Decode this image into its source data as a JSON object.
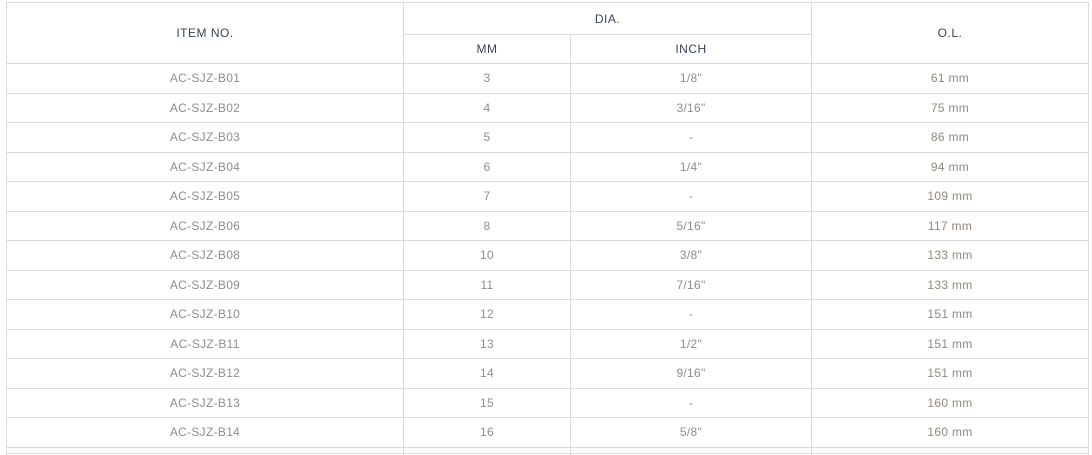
{
  "chart_data": {
    "type": "table",
    "header": {
      "item_no": "ITEM NO.",
      "dia": "DIA.",
      "dia_mm": "MM",
      "dia_inch": "INCH",
      "ol": "O.L."
    },
    "columns": [
      "ITEM NO.",
      "DIA. (MM)",
      "DIA. (INCH)",
      "O.L."
    ],
    "rows": [
      {
        "item_no": "AC-SJZ-B01",
        "dia_mm": "3",
        "dia_inch": "1/8\"",
        "ol": "61 mm"
      },
      {
        "item_no": "AC-SJZ-B02",
        "dia_mm": "4",
        "dia_inch": "3/16\"",
        "ol": "75 mm"
      },
      {
        "item_no": "AC-SJZ-B03",
        "dia_mm": "5",
        "dia_inch": "-",
        "ol": "86 mm"
      },
      {
        "item_no": "AC-SJZ-B04",
        "dia_mm": "6",
        "dia_inch": "1/4\"",
        "ol": "94 mm"
      },
      {
        "item_no": "AC-SJZ-B05",
        "dia_mm": "7",
        "dia_inch": "-",
        "ol": "109 mm"
      },
      {
        "item_no": "AC-SJZ-B06",
        "dia_mm": "8",
        "dia_inch": "5/16\"",
        "ol": "117 mm"
      },
      {
        "item_no": "AC-SJZ-B08",
        "dia_mm": "10",
        "dia_inch": "3/8\"",
        "ol": "133 mm"
      },
      {
        "item_no": "AC-SJZ-B09",
        "dia_mm": "11",
        "dia_inch": "7/16\"",
        "ol": "133 mm"
      },
      {
        "item_no": "AC-SJZ-B10",
        "dia_mm": "12",
        "dia_inch": "-",
        "ol": "151 mm"
      },
      {
        "item_no": "AC-SJZ-B11",
        "dia_mm": "13",
        "dia_inch": "1/2\"",
        "ol": "151 mm"
      },
      {
        "item_no": "AC-SJZ-B12",
        "dia_mm": "14",
        "dia_inch": "9/16\"",
        "ol": "151 mm"
      },
      {
        "item_no": "AC-SJZ-B13",
        "dia_mm": "15",
        "dia_inch": "-",
        "ol": "160 mm"
      },
      {
        "item_no": "AC-SJZ-B14",
        "dia_mm": "16",
        "dia_inch": "5/8\"",
        "ol": "160 mm"
      }
    ]
  },
  "colors": {
    "header_text": "#3b4353",
    "body_text": "#8e8e8e",
    "ol_text": "#90897e",
    "border": "#dcdcdc",
    "background": "#ffffff"
  }
}
